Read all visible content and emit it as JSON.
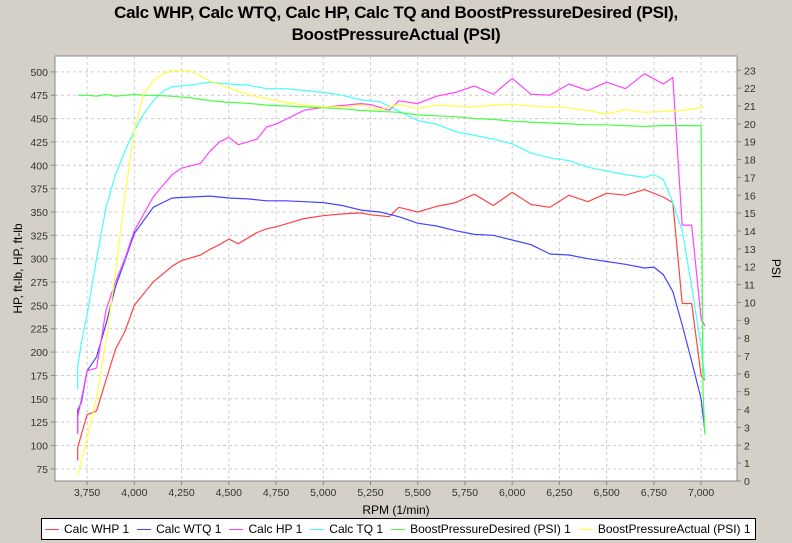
{
  "title_line1": "Calc WHP, Calc WTQ, Calc HP, Calc TQ and BoostPressureDesired (PSI),",
  "title_line2": "BoostPressureActual (PSI)",
  "chart_data": {
    "type": "line",
    "title": "Calc WHP, Calc WTQ, Calc HP, Calc TQ and BoostPressureDesired (PSI), BoostPressureActual (PSI)",
    "xlabel": "RPM (1/min)",
    "ylabel": "HP, ft-lb, HP, ft-lb",
    "y2label": "PSI",
    "xlim": [
      3580,
      7190
    ],
    "ylim": [
      62,
      517
    ],
    "y2lim": [
      0,
      23.8
    ],
    "xticks": [
      3750,
      4000,
      4250,
      4500,
      4750,
      5000,
      5250,
      5500,
      5750,
      6000,
      6250,
      6500,
      6750,
      7000
    ],
    "xtick_labels": [
      "3,750",
      "4,000",
      "4,250",
      "4,500",
      "4,750",
      "5,000",
      "5,250",
      "5,500",
      "5,750",
      "6,000",
      "6,250",
      "6,500",
      "6,750",
      "7,000"
    ],
    "yticks": [
      75,
      100,
      125,
      150,
      175,
      200,
      225,
      250,
      275,
      300,
      325,
      350,
      375,
      400,
      425,
      450,
      475,
      500
    ],
    "y2ticks": [
      0,
      1,
      2,
      3,
      4,
      5,
      6,
      7,
      8,
      9,
      10,
      11,
      12,
      13,
      14,
      15,
      16,
      17,
      18,
      19,
      20,
      21,
      22,
      23
    ],
    "grid": true,
    "legend_position": "bottom",
    "series": [
      {
        "name": "Calc WHP 1",
        "color": "#ff4444",
        "axis": "left",
        "x": [
          3700,
          3700,
          3750,
          3800,
          3850,
          3900,
          3950,
          4000,
          4100,
          4200,
          4250,
          4350,
          4400,
          4450,
          4500,
          4550,
          4650,
          4700,
          4750,
          4800,
          4900,
          5000,
          5100,
          5200,
          5250,
          5350,
          5400,
          5500,
          5600,
          5700,
          5800,
          5900,
          6000,
          6100,
          6200,
          6300,
          6400,
          6500,
          6600,
          6700,
          6800,
          6850,
          6900,
          6950,
          7000,
          7020
        ],
        "y": [
          84,
          98,
          133,
          137,
          170,
          203,
          222,
          250,
          275,
          292,
          298,
          304,
          310,
          315,
          321,
          316,
          328,
          332,
          334,
          337,
          343,
          346,
          348,
          349,
          347,
          345,
          355,
          350,
          356,
          360,
          369,
          357,
          371,
          358,
          355,
          368,
          361,
          370,
          368,
          374,
          366,
          360,
          252,
          252,
          175,
          170
        ]
      },
      {
        "name": "Calc WTQ 1",
        "color": "#4444ff",
        "axis": "left",
        "x": [
          3700,
          3700,
          3720,
          3750,
          3800,
          3850,
          3900,
          3950,
          4000,
          4100,
          4200,
          4300,
          4400,
          4500,
          4600,
          4700,
          4800,
          4900,
          5000,
          5100,
          5200,
          5300,
          5400,
          5500,
          5600,
          5700,
          5800,
          5900,
          6000,
          6100,
          6200,
          6300,
          6400,
          6500,
          6600,
          6700,
          6750,
          6800,
          6850,
          6900,
          6950,
          7000,
          7020
        ],
        "y": [
          115,
          138,
          146,
          180,
          195,
          230,
          270,
          298,
          327,
          355,
          365,
          366,
          367,
          365,
          364,
          362,
          362,
          361,
          360,
          357,
          352,
          350,
          345,
          338,
          335,
          330,
          326,
          325,
          320,
          315,
          305,
          304,
          300,
          297,
          294,
          290,
          291,
          283,
          265,
          229,
          190,
          150,
          115
        ]
      },
      {
        "name": "Calc HP 1",
        "color": "#ff44ff",
        "axis": "left",
        "x": [
          3700,
          3700,
          3750,
          3800,
          3850,
          3900,
          3950,
          4000,
          4100,
          4200,
          4250,
          4350,
          4400,
          4450,
          4500,
          4550,
          4650,
          4700,
          4750,
          4800,
          4900,
          5000,
          5100,
          5200,
          5250,
          5350,
          5400,
          5500,
          5600,
          5700,
          5800,
          5900,
          6000,
          6100,
          6200,
          6300,
          6400,
          6500,
          6600,
          6700,
          6800,
          6850,
          6900,
          6950,
          7000,
          7020
        ],
        "y": [
          112,
          130,
          180,
          183,
          245,
          275,
          300,
          330,
          366,
          390,
          397,
          402,
          415,
          425,
          430,
          422,
          428,
          441,
          444,
          449,
          459,
          462,
          464,
          466,
          465,
          459,
          469,
          466,
          474,
          478,
          485,
          476,
          493,
          476,
          475,
          487,
          480,
          489,
          482,
          498,
          487,
          494,
          336,
          336,
          236,
          228
        ]
      },
      {
        "name": "Calc TQ 1",
        "color": "#44ffff",
        "axis": "left",
        "x": [
          3700,
          3700,
          3720,
          3750,
          3800,
          3850,
          3900,
          3950,
          4000,
          4050,
          4100,
          4150,
          4200,
          4300,
          4400,
          4500,
          4600,
          4700,
          4800,
          4900,
          5000,
          5100,
          5200,
          5300,
          5400,
          5500,
          5600,
          5700,
          5800,
          5900,
          6000,
          6100,
          6200,
          6300,
          6400,
          6500,
          6600,
          6700,
          6750,
          6800,
          6850,
          6900,
          6950,
          7000,
          7020
        ],
        "y": [
          160,
          185,
          210,
          240,
          300,
          355,
          390,
          415,
          437,
          455,
          469,
          479,
          484,
          486,
          489,
          487,
          486,
          482,
          482,
          480,
          478,
          475,
          470,
          468,
          458,
          448,
          444,
          436,
          432,
          428,
          423,
          413,
          408,
          405,
          398,
          394,
          390,
          387,
          390,
          385,
          360,
          330,
          270,
          205,
          172
        ]
      },
      {
        "name": "BoostPressureDesired (PSI) 1",
        "color": "#44ff44",
        "axis": "right",
        "x": [
          3700,
          3750,
          3800,
          3850,
          3900,
          3950,
          4000,
          4050,
          4100,
          4200,
          4300,
          4400,
          4500,
          4600,
          4700,
          4800,
          4900,
          5000,
          5100,
          5200,
          5300,
          5400,
          5500,
          5600,
          5700,
          5800,
          5900,
          6000,
          6100,
          6200,
          6300,
          6400,
          6500,
          6600,
          6700,
          6800,
          6900,
          7000,
          7010,
          7020
        ],
        "y": [
          21.6,
          21.6,
          21.55,
          21.65,
          21.55,
          21.6,
          21.65,
          21.6,
          21.6,
          21.55,
          21.45,
          21.3,
          21.2,
          21.15,
          21.05,
          21.0,
          20.95,
          20.9,
          20.85,
          20.75,
          20.7,
          20.65,
          20.5,
          20.45,
          20.4,
          20.3,
          20.25,
          20.15,
          20.1,
          20.05,
          20.0,
          19.95,
          19.95,
          19.9,
          19.85,
          19.9,
          19.9,
          19.9,
          5.0,
          2.6
        ]
      },
      {
        "name": "BoostPressureActual (PSI) 1",
        "color": "#ffff44",
        "axis": "right",
        "x": [
          3700,
          3750,
          3800,
          3850,
          3900,
          3950,
          4000,
          4050,
          4100,
          4150,
          4200,
          4300,
          4400,
          4500,
          4600,
          4700,
          4800,
          4900,
          5000,
          5100,
          5200,
          5300,
          5400,
          5500,
          5600,
          5700,
          5800,
          5900,
          6000,
          6100,
          6200,
          6300,
          6400,
          6500,
          6600,
          6700,
          6800,
          6900,
          7000,
          7020
        ],
        "y": [
          0.3,
          2.4,
          4.7,
          7.8,
          11.7,
          16.0,
          19.6,
          21.7,
          22.4,
          22.8,
          23.0,
          22.95,
          22.4,
          22.0,
          21.65,
          21.4,
          21.2,
          21.05,
          20.95,
          20.95,
          21.05,
          20.8,
          21.1,
          20.85,
          21.05,
          21.0,
          20.95,
          21.05,
          21.1,
          21.0,
          20.95,
          20.9,
          20.75,
          20.55,
          20.8,
          20.65,
          20.7,
          20.75,
          20.9,
          20.95
        ]
      }
    ]
  }
}
